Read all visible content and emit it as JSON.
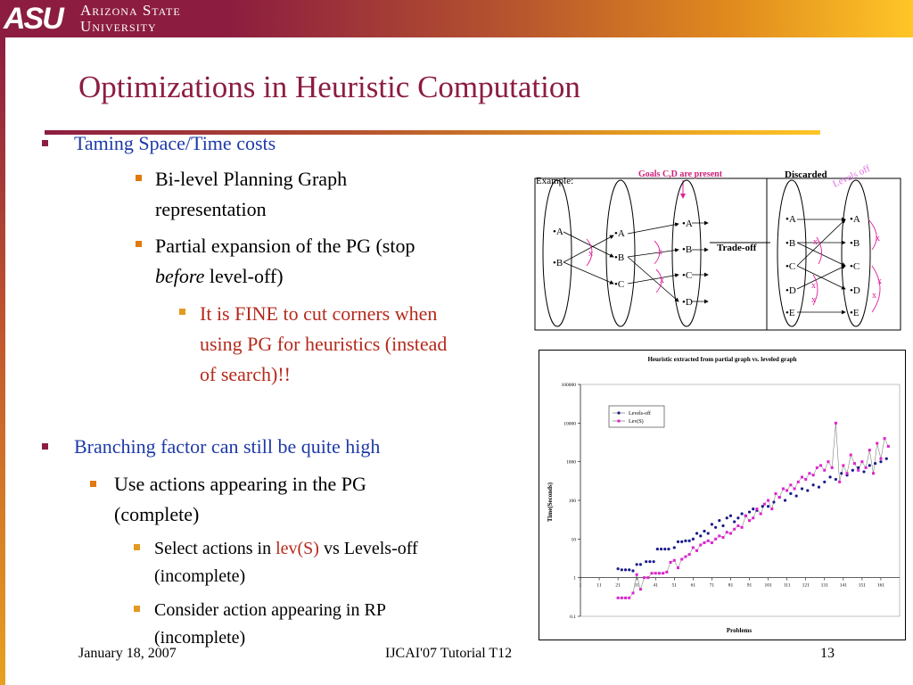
{
  "header": {
    "logo_text": "ASU",
    "university_line1": "Arizona State",
    "university_line2": "University"
  },
  "slide": {
    "title": "Optimizations in Heuristic Computation",
    "bullets": {
      "b1": "Taming Space/Time costs",
      "b1_1_line1": "Bi-level Planning Graph",
      "b1_1_line2": "representation",
      "b1_2_line1": "Partial expansion of the PG (stop",
      "b1_2_line2_italic": "before",
      "b1_2_line2_rest": " level-off)",
      "b1_2_1_line1": "It is FINE to cut corners when",
      "b1_2_1_line2": "using PG for heuristics (instead",
      "b1_2_1_line3": "of search)!!",
      "b2": "Branching factor can still be quite high",
      "b2_1_line1": "Use actions appearing in the PG",
      "b2_1_line2": "(complete)",
      "b2_1_1_pre": "Select actions in ",
      "b2_1_1_red": "lev(S)",
      "b2_1_1_post": " vs Levels-off",
      "b2_1_1_line2": "(incomplete)",
      "b2_1_2_line1": "Consider action appearing in RP",
      "b2_1_2_line2": "(incomplete)"
    }
  },
  "diagram": {
    "example_label": "Example:",
    "goals_label": "Goals C,D are present",
    "discarded_label": "Discarded",
    "levels_off_label": "Levels off",
    "tradeoff_label": "Trade-off",
    "cross_mark": "x",
    "set1": [
      "•A",
      "•B"
    ],
    "set2": [
      "•A",
      "•B",
      "•C"
    ],
    "set3": [
      "•A",
      "•B",
      "•C",
      "•D"
    ],
    "set4": [
      "•A",
      "•B",
      "•C",
      "•D",
      "•E"
    ],
    "set5": [
      "•A",
      "•B",
      "•C",
      "•D",
      "•E"
    ]
  },
  "footer": {
    "date": "January 18, 2007",
    "event": "IJCAI'07 Tutorial T12",
    "page": "13"
  },
  "chart_data": {
    "type": "scatter",
    "title": "Heuristic extracted from partial graph vs. leveled graph",
    "xlabel": "Problems",
    "ylabel": "Time(Seconds)",
    "yscale": "log",
    "ylim": [
      0.1,
      100000
    ],
    "yticks": [
      "0.1",
      "1",
      "10",
      "100",
      "1000",
      "10000",
      "100000"
    ],
    "xticks": [
      "1",
      "11",
      "21",
      "31",
      "41",
      "51",
      "61",
      "71",
      "81",
      "91",
      "101",
      "111",
      "121",
      "131",
      "141",
      "151",
      "161"
    ],
    "legend_position": "top-left",
    "series": [
      {
        "name": "Levels-off",
        "color": "#1a1a8c",
        "marker": "circle",
        "connected": false,
        "x": [
          21,
          23,
          25,
          27,
          29,
          31,
          33,
          36,
          38,
          40,
          42,
          44,
          46,
          48,
          51,
          53,
          55,
          57,
          59,
          61,
          63,
          65,
          67,
          69,
          71,
          73,
          75,
          77,
          79,
          81,
          83,
          85,
          87,
          89,
          91,
          93,
          95,
          98,
          101,
          104,
          107,
          110,
          113,
          116,
          119,
          122,
          125,
          128,
          131,
          134,
          137,
          140,
          143,
          146,
          149,
          152,
          155,
          158,
          161,
          164
        ],
        "y": [
          1.7,
          1.6,
          1.6,
          1.6,
          1.5,
          2.2,
          2.2,
          2.6,
          2.6,
          2.6,
          5.5,
          5.5,
          5.5,
          5.5,
          6,
          8.5,
          8.5,
          9,
          9,
          10,
          14,
          12,
          16,
          14,
          24,
          20,
          30,
          22,
          35,
          40,
          28,
          35,
          45,
          40,
          50,
          60,
          55,
          70,
          70,
          90,
          120,
          100,
          150,
          130,
          200,
          180,
          250,
          220,
          300,
          400,
          350,
          500,
          450,
          600,
          700,
          550,
          800,
          900,
          1000,
          1200
        ]
      },
      {
        "name": "Lev(S)",
        "color": "#e020d0",
        "marker": "square",
        "connected": true,
        "x": [
          21,
          23,
          25,
          27,
          29,
          31,
          33,
          35,
          37,
          39,
          41,
          43,
          45,
          47,
          49,
          51,
          53,
          55,
          57,
          59,
          61,
          63,
          65,
          67,
          69,
          71,
          73,
          75,
          77,
          79,
          81,
          83,
          85,
          87,
          89,
          91,
          93,
          95,
          97,
          99,
          101,
          103,
          105,
          107,
          109,
          111,
          113,
          115,
          117,
          119,
          121,
          123,
          125,
          127,
          129,
          131,
          133,
          135,
          137,
          139,
          141,
          143,
          145,
          147,
          149,
          151,
          153,
          155,
          157,
          159,
          161,
          163,
          165
        ],
        "y": [
          0.3,
          0.3,
          0.3,
          0.3,
          0.4,
          1.2,
          0.5,
          1,
          1,
          1.3,
          1.3,
          1.3,
          1.3,
          1.4,
          2.5,
          2.8,
          1.8,
          3,
          3.5,
          4,
          6,
          5,
          7,
          8,
          9,
          8,
          10,
          12,
          11,
          15,
          14,
          18,
          22,
          20,
          40,
          30,
          35,
          60,
          45,
          80,
          100,
          60,
          150,
          120,
          200,
          180,
          250,
          200,
          300,
          400,
          350,
          500,
          450,
          700,
          800,
          600,
          1000,
          700,
          10000,
          300,
          800,
          500,
          1500,
          900,
          600,
          1000,
          700,
          2000,
          500,
          3000,
          1200,
          4000,
          2500
        ]
      }
    ]
  }
}
